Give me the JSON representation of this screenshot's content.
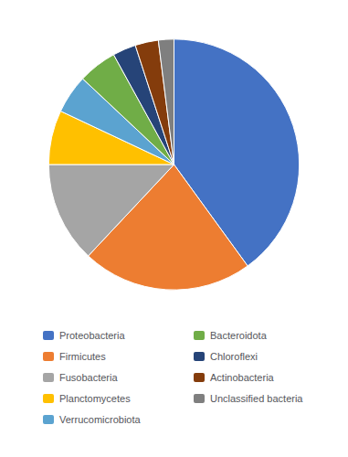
{
  "chart_data": {
    "type": "pie",
    "categories": [
      "Proteobacteria",
      "Firmicutes",
      "Fusobacteria",
      "Planctomycetes",
      "Verrucomicrobiota",
      "Bacteroidota",
      "Chloroflexi",
      "Actinobacteria",
      "Unclassified bacteria"
    ],
    "values": [
      40,
      22,
      13,
      7,
      5,
      5,
      3,
      3,
      2
    ],
    "colors": [
      "#4472C4",
      "#ED7D31",
      "#A5A5A5",
      "#FFC000",
      "#5BA3D0",
      "#70AD47",
      "#264478",
      "#843C0C",
      "#7F7F7F"
    ],
    "legend": "bottom"
  }
}
